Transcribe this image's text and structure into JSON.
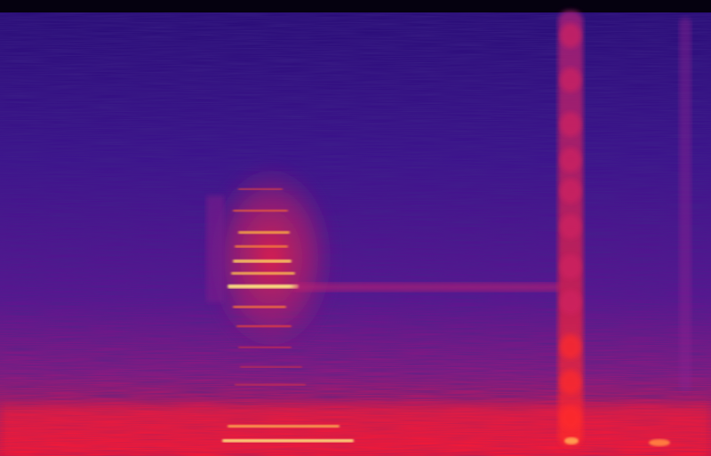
{
  "image": {
    "kind": "spectrogram",
    "colormap": [
      "#000004",
      "#1b0c41",
      "#3b0f70",
      "#57157e",
      "#8c2981",
      "#b73779",
      "#de4968",
      "#f7705c",
      "#fe9f6d",
      "#fecf92",
      "#fcfdbf"
    ],
    "background_color": "#3a1590",
    "noise_color": "#2a0c6e",
    "hot_color": "#ff2a2a",
    "peak_color": "#ffe680",
    "features": [
      "broadband-vertical-streak",
      "harmonic-stack",
      "low-frequency-energy-band",
      "faint-vertical-streak"
    ]
  }
}
